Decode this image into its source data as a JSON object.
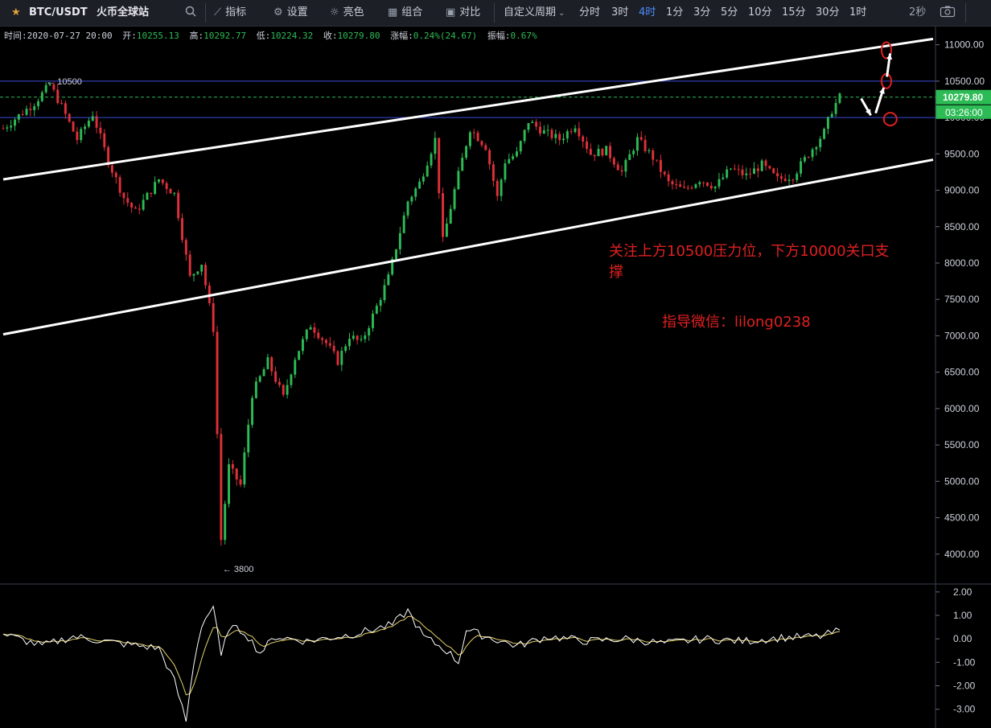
{
  "toolbar": {
    "symbol": "BTC/USDT",
    "exchange": "火币全球站",
    "buttons": [
      "指标",
      "设置",
      "亮色",
      "组合",
      "对比"
    ],
    "custom_period": "自定义周期",
    "periods": [
      "分时",
      "3时",
      "4时",
      "1分",
      "3分",
      "5分",
      "10分",
      "15分",
      "30分",
      "1时"
    ],
    "active_period": "4时",
    "refresh": "2秒",
    "icons": [
      "star-icon",
      "search-icon",
      "indicator-icon",
      "gear-icon",
      "sun-icon",
      "layout-icon",
      "compare-icon",
      "chevron-down-icon",
      "camera-icon"
    ]
  },
  "info": {
    "time_label": "时间:",
    "time": "2020-07-27 20:00",
    "open_label": "开:",
    "open": "10255.13",
    "high_label": "高:",
    "high": "10292.77",
    "low_label": "低:",
    "low": "10224.32",
    "close_label": "收:",
    "close": "10279.80",
    "change_label": "涨幅:",
    "change": "0.24%(24.67)",
    "amp_label": "振幅:",
    "amp": "0.67%"
  },
  "annotations": {
    "text1_line1": "关注上方10500压力位，下方10000关口支",
    "text1_line2": "撑",
    "text2": "指导微信：lilong0238"
  },
  "colors": {
    "up": "#2dbb55",
    "down": "#e0303a",
    "hline": "#3b4bd6",
    "close_line": "#2dbb55",
    "annotation": "#e02020",
    "osc_fast": "#ffffff",
    "osc_slow": "#e8d36a"
  },
  "chart_data": {
    "type": "candlestick",
    "symbol": "BTC/USDT",
    "interval": "4时",
    "ylim": [
      3600,
      11250
    ],
    "y_ticks": [
      "11000.00",
      "10500.00",
      "10000.00",
      "9500.00",
      "9000.00",
      "8500.00",
      "8000.00",
      "7500.00",
      "7000.00",
      "6500.00",
      "6000.00",
      "5500.00",
      "5000.00",
      "4500.00",
      "4000.00"
    ],
    "y_tick_values": [
      11000,
      10500,
      10000,
      9500,
      9000,
      8500,
      8000,
      7500,
      7000,
      6500,
      6000,
      5500,
      5000,
      4500,
      4000
    ],
    "last_price": "10279.80",
    "countdown": "03:26:00",
    "high_marker": "← 10500",
    "low_marker": "← 3800",
    "horizontal_lines": [
      10500,
      10000
    ],
    "price_path": [
      [
        0,
        9850
      ],
      [
        8,
        10200
      ],
      [
        12,
        10450
      ],
      [
        15,
        10150
      ],
      [
        19,
        9700
      ],
      [
        23,
        10050
      ],
      [
        27,
        9400
      ],
      [
        31,
        8900
      ],
      [
        34,
        8700
      ],
      [
        40,
        9150
      ],
      [
        44,
        8950
      ],
      [
        48,
        7800
      ],
      [
        51,
        8000
      ],
      [
        54,
        7100
      ],
      [
        56,
        4200
      ],
      [
        58,
        5200
      ],
      [
        61,
        4950
      ],
      [
        64,
        6200
      ],
      [
        68,
        6650
      ],
      [
        72,
        6150
      ],
      [
        75,
        6700
      ],
      [
        79,
        7150
      ],
      [
        83,
        6900
      ],
      [
        86,
        6650
      ],
      [
        89,
        7000
      ],
      [
        92,
        6900
      ],
      [
        96,
        7400
      ],
      [
        99,
        7800
      ],
      [
        104,
        8850
      ],
      [
        107,
        9100
      ],
      [
        111,
        9700
      ],
      [
        113,
        8300
      ],
      [
        116,
        9000
      ],
      [
        120,
        9850
      ],
      [
        124,
        9600
      ],
      [
        127,
        8900
      ],
      [
        129,
        9400
      ],
      [
        132,
        9500
      ],
      [
        135,
        9950
      ],
      [
        139,
        9800
      ],
      [
        143,
        9700
      ],
      [
        147,
        9900
      ],
      [
        151,
        9500
      ],
      [
        155,
        9550
      ],
      [
        159,
        9250
      ],
      [
        163,
        9700
      ],
      [
        167,
        9450
      ],
      [
        171,
        9100
      ],
      [
        175,
        9000
      ],
      [
        179,
        9150
      ],
      [
        183,
        9050
      ],
      [
        187,
        9300
      ],
      [
        191,
        9200
      ],
      [
        195,
        9350
      ],
      [
        199,
        9150
      ],
      [
        203,
        9200
      ],
      [
        207,
        9500
      ],
      [
        211,
        9800
      ],
      [
        213,
        10100
      ],
      [
        215,
        10279.8
      ]
    ],
    "channel_upper": {
      "from": [
        0,
        9150
      ],
      "to": [
        239,
        11080
      ]
    },
    "channel_lower": {
      "from": [
        0,
        7020
      ],
      "to": [
        239,
        9420
      ]
    },
    "oscillator": {
      "ylim": [
        -3.8,
        2.2
      ],
      "y_ticks": [
        "2.00",
        "1.00",
        "0.00",
        "-1.00",
        "-2.00",
        "-3.00"
      ],
      "y_tick_values": [
        2,
        1,
        0,
        -1,
        -2,
        -3
      ],
      "path": [
        [
          0,
          0.2
        ],
        [
          10,
          -0.3
        ],
        [
          18,
          0.1
        ],
        [
          30,
          -0.2
        ],
        [
          40,
          -0.4
        ],
        [
          44,
          -1.8
        ],
        [
          47,
          -3.5
        ],
        [
          49,
          -1.0
        ],
        [
          51,
          0.6
        ],
        [
          54,
          1.4
        ],
        [
          56,
          -0.8
        ],
        [
          58,
          0.5
        ],
        [
          62,
          0.3
        ],
        [
          66,
          -0.6
        ],
        [
          70,
          0.1
        ],
        [
          78,
          -0.1
        ],
        [
          90,
          0.2
        ],
        [
          100,
          0.6
        ],
        [
          104,
          1.2
        ],
        [
          108,
          0.1
        ],
        [
          114,
          -0.5
        ],
        [
          117,
          -1.0
        ],
        [
          119,
          0.4
        ],
        [
          124,
          0.1
        ],
        [
          132,
          -0.3
        ],
        [
          140,
          0.1
        ],
        [
          150,
          -0.1
        ],
        [
          160,
          0.0
        ],
        [
          170,
          -0.2
        ],
        [
          180,
          0.0
        ],
        [
          190,
          -0.1
        ],
        [
          200,
          0.05
        ],
        [
          210,
          0.1
        ],
        [
          215,
          0.35
        ]
      ]
    }
  }
}
